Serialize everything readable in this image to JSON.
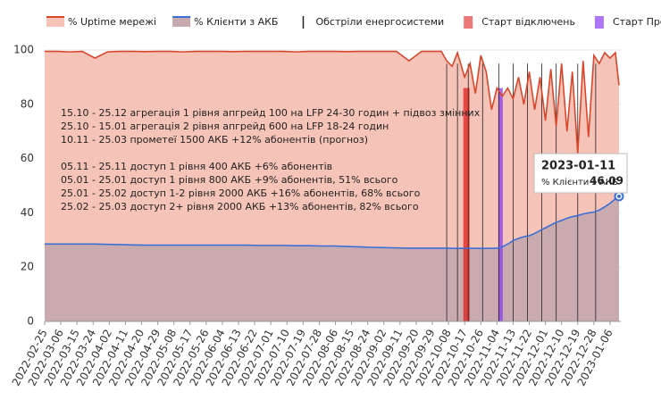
{
  "chart_data": {
    "type": "area-line",
    "x": [
      "2022-02-25",
      "2022-03-04",
      "2022-03-11",
      "2022-03-18",
      "2022-03-25",
      "2022-04-01",
      "2022-04-08",
      "2022-04-15",
      "2022-04-22",
      "2022-04-29",
      "2022-05-06",
      "2022-05-13",
      "2022-05-20",
      "2022-05-27",
      "2022-06-03",
      "2022-06-10",
      "2022-06-17",
      "2022-06-24",
      "2022-07-01",
      "2022-07-08",
      "2022-07-15",
      "2022-07-22",
      "2022-07-29",
      "2022-08-05",
      "2022-08-12",
      "2022-08-19",
      "2022-08-26",
      "2022-09-02",
      "2022-09-09",
      "2022-09-16",
      "2022-09-23",
      "2022-09-30",
      "2022-10-04",
      "2022-10-07",
      "2022-10-10",
      "2022-10-13",
      "2022-10-17",
      "2022-10-20",
      "2022-10-23",
      "2022-10-26",
      "2022-10-29",
      "2022-11-01",
      "2022-11-04",
      "2022-11-07",
      "2022-11-10",
      "2022-11-13",
      "2022-11-16",
      "2022-11-19",
      "2022-11-22",
      "2022-11-25",
      "2022-11-28",
      "2022-12-01",
      "2022-12-04",
      "2022-12-07",
      "2022-12-10",
      "2022-12-13",
      "2022-12-16",
      "2022-12-19",
      "2022-12-22",
      "2022-12-25",
      "2022-12-28",
      "2022-12-31",
      "2023-01-03",
      "2023-01-06",
      "2023-01-09",
      "2023-01-11"
    ],
    "series": [
      {
        "name": "% Uptime мережі",
        "color": "#d9472b",
        "fill": "#f5c3b7",
        "values": [
          99.5,
          99.5,
          99.3,
          99.5,
          97,
          99.3,
          99.5,
          99.5,
          99.4,
          99.5,
          99.5,
          99.3,
          99.5,
          99.5,
          99.5,
          99.4,
          99.5,
          99.5,
          99.5,
          99.5,
          99.3,
          99.5,
          99.5,
          99.5,
          99.4,
          99.5,
          99.5,
          99.5,
          99.5,
          96,
          99.5,
          99.5,
          99.5,
          96,
          94,
          99,
          90,
          95,
          84,
          98,
          92,
          78,
          86,
          83,
          86,
          82,
          90,
          80,
          92,
          78,
          90,
          74,
          93,
          72,
          95,
          70,
          92,
          62,
          96,
          68,
          98,
          95,
          99,
          97,
          99,
          87
        ]
      },
      {
        "name": "% Клієнти з АКБ",
        "color": "#3b6fd6",
        "fill": "#c6aaae",
        "values": [
          28.5,
          28.5,
          28.5,
          28.5,
          28.5,
          28.4,
          28.3,
          28.2,
          28.1,
          28.1,
          28.1,
          28.1,
          28.1,
          28.1,
          28.1,
          28.1,
          28.1,
          28.0,
          28.0,
          28.0,
          27.9,
          27.9,
          27.8,
          27.8,
          27.6,
          27.5,
          27.3,
          27.2,
          27.1,
          27.0,
          27.0,
          27.0,
          27,
          27,
          26.9,
          26.9,
          26.9,
          26.9,
          26.9,
          26.9,
          26.9,
          26.9,
          27.0,
          27.5,
          28.5,
          29.8,
          30.6,
          31.2,
          31.6,
          32.4,
          33.5,
          34.5,
          35.5,
          36.5,
          37.2,
          38,
          38.6,
          39,
          39.6,
          40,
          40.3,
          41,
          42.2,
          43.5,
          45.2,
          46.09
        ]
      }
    ],
    "shelling": {
      "name": "Обстріли енергосистеми",
      "color": "#222222",
      "dates": [
        "2022-10-07",
        "2022-10-13",
        "2022-10-19",
        "2022-10-27",
        "2022-11-05",
        "2022-11-13",
        "2022-11-21",
        "2022-11-29",
        "2022-12-07",
        "2022-12-19",
        "2022-12-29"
      ]
    },
    "outage_start": {
      "name": "Старт відключень",
      "color": "#e0201c",
      "date": "2022-10-18"
    },
    "prometheus_start": {
      "name": "Старт Прометеїв",
      "color": "#8a3cf0",
      "date": "2022-11-06"
    },
    "annotations": [
      "15.10 - 25.12 агрегація 1 рівня апгрейд 100 на LFP 24-30 годин + підвоз змінних",
      "25.10 - 15.01 агрегація 2 рівня апгрейд 600 на LFP 18-24 годин",
      "10.11 - 25.03 прометеї 1500 АКБ +12% абонентів (прогноз)",
      "05.11 - 25.11 доступ 1 рівня 400 АКБ +6% абонентів",
      "05.01 - 25.01 доступ 1 рівня 800 АКБ +9% абонентів, 51% всього",
      "25.01 - 25.02 доступ 1-2 рівня 2000 АКБ +16% абонентів, 68% всього",
      "25.02 - 25.03 доступ 2+ рівня 2000 АКБ +13% абонентів, 82% всього"
    ],
    "xlim": [
      "2022-02-25",
      "2023-01-12"
    ],
    "xticks": [
      "2022-02-25",
      "2022-03-06",
      "2022-03-15",
      "2022-03-24",
      "2022-04-02",
      "2022-04-11",
      "2022-04-20",
      "2022-04-29",
      "2022-05-08",
      "2022-05-17",
      "2022-05-26",
      "2022-06-04",
      "2022-06-13",
      "2022-06-22",
      "2022-07-01",
      "2022-07-10",
      "2022-07-19",
      "2022-07-28",
      "2022-08-06",
      "2022-08-15",
      "2022-08-24",
      "2022-09-02",
      "2022-09-11",
      "2022-09-20",
      "2022-09-29",
      "2022-10-08",
      "2022-10-17",
      "2022-10-26",
      "2022-11-04",
      "2022-11-13",
      "2022-11-22",
      "2022-12-01",
      "2022-12-10",
      "2022-12-19",
      "2022-12-28",
      "2023-01-06"
    ],
    "ylim": [
      0,
      100
    ],
    "yticks": [
      0,
      20,
      40,
      60,
      80,
      100
    ],
    "grid": true,
    "legend": "top",
    "tooltip_index": 65
  }
}
